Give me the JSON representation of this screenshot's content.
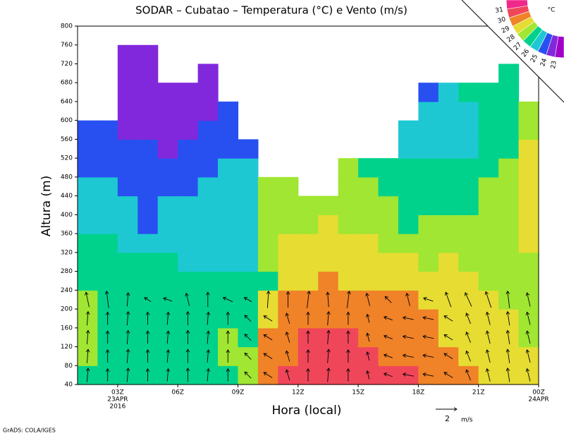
{
  "chart_data": {
    "type": "heatmap",
    "title": "SODAR – Cubatao – Temperatura (°C) e Vento (m/s)",
    "x_label": "Hora (local)",
    "y_label": "Altura (m)",
    "footer": "GrADS: COLA/IGES",
    "xlim": [
      1,
      24
    ],
    "ylim": [
      40,
      800
    ],
    "xticks": [
      {
        "value": 3,
        "label": "03Z"
      },
      {
        "value": 6,
        "label": "06Z"
      },
      {
        "value": 9,
        "label": "09Z"
      },
      {
        "value": 12,
        "label": "12Z"
      },
      {
        "value": 15,
        "label": "15Z"
      },
      {
        "value": 18,
        "label": "18Z"
      },
      {
        "value": 21,
        "label": "21Z"
      },
      {
        "value": 24,
        "label": "00Z"
      }
    ],
    "x_annotations": [
      {
        "x": 3,
        "lines": [
          "23APR",
          "2016"
        ]
      },
      {
        "x": 24,
        "lines": [
          "24APR"
        ]
      }
    ],
    "yticks": [
      40,
      80,
      120,
      160,
      200,
      240,
      280,
      320,
      360,
      400,
      440,
      480,
      520,
      560,
      600,
      640,
      680,
      720,
      760,
      800
    ],
    "x": [
      1,
      2,
      3,
      4,
      5,
      6,
      7,
      8,
      9,
      10,
      11,
      12,
      13,
      14,
      15,
      16,
      17,
      18,
      19,
      20,
      21,
      22,
      23
    ],
    "y": [
      40,
      80,
      120,
      160,
      200,
      240,
      280,
      320,
      360,
      400,
      440,
      480,
      520,
      560,
      600,
      640,
      680,
      720,
      760
    ],
    "values": [
      [
        26.5,
        27.5,
        27.5,
        27.5,
        27.5,
        26.5,
        26.5,
        26.5,
        25.5,
        25.5,
        25.5,
        24.5,
        24.5,
        24.5,
        null,
        null,
        null,
        null,
        null
      ],
      [
        26.5,
        26.5,
        26.5,
        26.5,
        26.5,
        26.5,
        26.5,
        26.5,
        25.5,
        25.5,
        25.5,
        24.5,
        24.5,
        24.5,
        null,
        null,
        null,
        null,
        null
      ],
      [
        26.5,
        26.5,
        26.5,
        26.5,
        26.5,
        26.5,
        26.5,
        25.5,
        25.5,
        25.5,
        24.5,
        24.5,
        24.5,
        23.5,
        23.5,
        23.5,
        23.5,
        23.5,
        null
      ],
      [
        26.5,
        26.5,
        26.5,
        26.5,
        26.5,
        26.5,
        26.5,
        25.5,
        24.5,
        24.5,
        24.5,
        24.5,
        24.5,
        23.5,
        23.5,
        23.5,
        23.5,
        23.5,
        null
      ],
      [
        26.5,
        26.5,
        26.5,
        26.5,
        26.5,
        26.5,
        26.5,
        25.5,
        25.5,
        25.5,
        24.5,
        24.5,
        23.5,
        23.5,
        23.5,
        23.5,
        null,
        null,
        null
      ],
      [
        26.5,
        26.5,
        26.5,
        26.5,
        26.5,
        26.5,
        25.5,
        25.5,
        25.5,
        25.5,
        24.5,
        24.5,
        24.5,
        23.5,
        23.5,
        23.5,
        null,
        null,
        null
      ],
      [
        26.5,
        26.5,
        26.5,
        26.5,
        26.5,
        26.5,
        25.5,
        25.5,
        25.5,
        25.5,
        25.5,
        24.5,
        24.5,
        24.5,
        23.5,
        23.5,
        23.5,
        null,
        null
      ],
      [
        26.5,
        27.5,
        27.5,
        26.5,
        26.5,
        26.5,
        25.5,
        25.5,
        25.5,
        25.5,
        25.5,
        25.5,
        24.5,
        24.5,
        24.5,
        null,
        null,
        null,
        null
      ],
      [
        27.5,
        27.5,
        26.5,
        26.5,
        26.5,
        26.5,
        25.5,
        25.5,
        25.5,
        25.5,
        25.5,
        25.5,
        24.5,
        null,
        null,
        null,
        null,
        null,
        null
      ],
      [
        29.5,
        29.5,
        29.5,
        28.5,
        28.5,
        26.5,
        27.5,
        27.5,
        27.5,
        27.5,
        27.5,
        null,
        null,
        null,
        null,
        null,
        null,
        null,
        null
      ],
      [
        30.5,
        29.5,
        29.5,
        29.5,
        29.5,
        28.5,
        28.5,
        28.5,
        27.5,
        27.5,
        27.5,
        null,
        null,
        null,
        null,
        null,
        null,
        null,
        null
      ],
      [
        30.5,
        30.5,
        30.5,
        29.5,
        29.5,
        28.5,
        28.5,
        28.5,
        27.5,
        27.5,
        null,
        null,
        null,
        null,
        null,
        null,
        null,
        null,
        null
      ],
      [
        30.5,
        30.5,
        30.5,
        29.5,
        29.5,
        29.5,
        28.5,
        28.5,
        28.5,
        27.5,
        null,
        null,
        null,
        null,
        null,
        null,
        null,
        null,
        null
      ],
      [
        30.5,
        30.5,
        30.5,
        29.5,
        29.5,
        28.5,
        28.5,
        28.5,
        27.5,
        27.5,
        27.5,
        27.5,
        null,
        null,
        null,
        null,
        null,
        null,
        null
      ],
      [
        30.5,
        30.5,
        29.5,
        29.5,
        29.5,
        28.5,
        28.5,
        28.5,
        27.5,
        27.5,
        27.5,
        26.5,
        null,
        null,
        null,
        null,
        null,
        null,
        null
      ],
      [
        30.5,
        29.5,
        29.5,
        29.5,
        29.5,
        28.5,
        28.5,
        27.5,
        27.5,
        27.5,
        26.5,
        26.5,
        null,
        null,
        null,
        null,
        null,
        null,
        null
      ],
      [
        30.5,
        29.5,
        29.5,
        29.5,
        29.5,
        28.5,
        28.5,
        27.5,
        26.5,
        26.5,
        26.5,
        26.5,
        25.5,
        25.5,
        null,
        null,
        null,
        null,
        null
      ],
      [
        29.5,
        29.5,
        29.5,
        29.5,
        28.5,
        28.5,
        27.5,
        27.5,
        27.5,
        26.5,
        26.5,
        26.5,
        25.5,
        25.5,
        25.5,
        24.5,
        null,
        null,
        null
      ],
      [
        29.5,
        29.5,
        28.5,
        28.5,
        28.5,
        28.5,
        28.5,
        27.5,
        27.5,
        26.5,
        26.5,
        26.5,
        25.5,
        25.5,
        25.5,
        25.5,
        null,
        null,
        null
      ],
      [
        29.5,
        28.5,
        28.5,
        28.5,
        28.5,
        28.5,
        27.5,
        27.5,
        27.5,
        26.5,
        26.5,
        26.5,
        25.5,
        25.5,
        25.5,
        26.5,
        null,
        null,
        null
      ],
      [
        28.5,
        28.5,
        28.5,
        28.5,
        28.5,
        27.5,
        27.5,
        27.5,
        27.5,
        27.5,
        27.5,
        26.5,
        26.5,
        26.5,
        26.5,
        26.5,
        null,
        null,
        null
      ],
      [
        28.5,
        28.5,
        28.5,
        28.5,
        27.5,
        27.5,
        27.5,
        27.5,
        27.5,
        27.5,
        27.5,
        27.5,
        26.5,
        26.5,
        26.5,
        26.5,
        26.5,
        null,
        null
      ],
      [
        28.5,
        28.5,
        27.5,
        27.5,
        27.5,
        27.5,
        27.5,
        28.5,
        28.5,
        28.5,
        28.5,
        28.5,
        28.5,
        27.5,
        27.5,
        null,
        null,
        null,
        null
      ]
    ],
    "colorbar": {
      "levels": [
        23,
        24,
        25,
        26,
        27,
        28,
        29,
        30,
        31
      ],
      "colors": [
        "#a000c8",
        "#8228dc",
        "#2850f0",
        "#1ec8d2",
        "#00d28c",
        "#a0e632",
        "#e6dc32",
        "#f08228",
        "#f0465a",
        "#f0288c"
      ],
      "unit": "°C"
    },
    "wind": {
      "x": [
        1.5,
        2.5,
        3.5,
        4.5,
        5.5,
        6.5,
        7.5,
        8.5,
        9.5,
        10.5,
        11.5,
        12.5,
        13.5,
        14.5,
        15.5,
        16.5,
        17.5,
        18.5,
        19.5,
        20.5,
        21.5,
        22.5,
        23.5
      ],
      "y": [
        60,
        100,
        140,
        180,
        220
      ],
      "u": [
        [
          0.1,
          0,
          0.1,
          0,
          0.1,
          0,
          0.1,
          0,
          -0.6,
          -0.8,
          -0.3,
          0,
          0.1,
          0,
          -0.2,
          -0.8,
          -1,
          -1,
          -0.8,
          -0.4,
          -0.3,
          -0.2,
          -0.3
        ],
        [
          0.1,
          0,
          0.1,
          0,
          0.1,
          0,
          0.1,
          0,
          -0.6,
          -0.8,
          -0.3,
          0,
          0.1,
          0,
          -0.2,
          -0.8,
          -1,
          -1,
          -0.8,
          -0.4,
          -0.3,
          -0.2,
          -0.3
        ],
        [
          0.1,
          0,
          0.1,
          0,
          0.1,
          0,
          0.1,
          0,
          -0.6,
          -0.8,
          -0.3,
          0,
          0.1,
          0,
          -0.2,
          -0.8,
          -1,
          -1,
          -0.8,
          -0.4,
          -0.3,
          -0.2,
          -0.3
        ],
        [
          0.1,
          0,
          0.1,
          0,
          0.1,
          0,
          0.1,
          0,
          -0.6,
          -0.8,
          -0.3,
          0,
          0.1,
          0,
          -0.2,
          -0.8,
          -1,
          -1,
          -0.8,
          -0.4,
          -0.3,
          -0.2,
          -0.3
        ],
        [
          -0.3,
          -0.2,
          0.1,
          -0.6,
          -0.8,
          -0.3,
          0,
          -0.9,
          -0.7,
          0.1,
          0,
          0.2,
          -0.1,
          0.2,
          -0.3,
          -0.6,
          -0.3,
          -0.9,
          -0.5,
          -0.6,
          -0.5,
          -0.2,
          -0.3
        ]
      ],
      "v": [
        [
          1.3,
          1.2,
          1.3,
          1.2,
          1.2,
          1.3,
          1.2,
          1.2,
          0.6,
          0.5,
          1,
          1.2,
          1.3,
          1.2,
          0.8,
          0.3,
          0.2,
          0.2,
          0.5,
          1,
          1.2,
          1.3,
          1.2
        ],
        [
          1.3,
          1.2,
          1.3,
          1.2,
          1.2,
          1.3,
          1.2,
          1.2,
          0.6,
          0.5,
          1,
          1.2,
          1.3,
          1.2,
          0.8,
          0.3,
          0.2,
          0.2,
          0.5,
          1,
          1.2,
          1.3,
          1.2
        ],
        [
          1.3,
          1.2,
          1.3,
          1.2,
          1.2,
          1.3,
          1.2,
          1.2,
          0.6,
          0.5,
          1,
          1.2,
          1.3,
          1.2,
          0.8,
          0.3,
          0.2,
          0.2,
          0.5,
          1,
          1.2,
          1.3,
          1.2
        ],
        [
          1.3,
          1.2,
          1.3,
          1.2,
          1.2,
          1.3,
          1.2,
          1.2,
          0.6,
          0.5,
          1,
          1.2,
          1.3,
          1.2,
          0.8,
          0.3,
          0.2,
          0.2,
          0.5,
          1,
          1.2,
          1.3,
          1.2
        ],
        [
          1.4,
          1.6,
          1.3,
          0.4,
          0.3,
          1.2,
          1.4,
          0.4,
          0.4,
          1.6,
          1.5,
          1.6,
          1.4,
          1.6,
          1.2,
          0.6,
          1.2,
          0.3,
          1.4,
          1.3,
          1.5,
          1.6,
          1.3
        ]
      ]
    },
    "wind_scale": 2,
    "wind_scale_unit": "m/s"
  }
}
